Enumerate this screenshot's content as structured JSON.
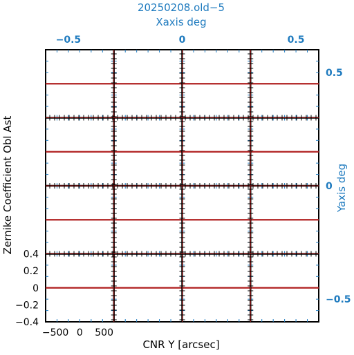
{
  "title": "20250208.old−5",
  "top_axis": {
    "label": "Xaxis deg",
    "ticks": [
      {
        "value": -0.5,
        "text": "−0.5"
      },
      {
        "value": 0,
        "text": "0"
      },
      {
        "value": 0.5,
        "text": "0.5"
      }
    ],
    "range": [
      -0.6,
      0.6
    ]
  },
  "right_axis": {
    "label": "Yaxis deg",
    "ticks": [
      {
        "value": 0.5,
        "text": "0.5"
      },
      {
        "value": 0,
        "text": "0"
      },
      {
        "value": -0.5,
        "text": "−0.5"
      }
    ],
    "range": [
      -0.6,
      0.6
    ]
  },
  "left_axis": {
    "label": "Zernike Coefficient Obl Ast",
    "ticks": [
      {
        "value": 0.4,
        "text": "0.4"
      },
      {
        "value": 0.2,
        "text": "0.2"
      },
      {
        "value": 0,
        "text": "0"
      },
      {
        "value": -0.2,
        "text": "−0.2"
      },
      {
        "value": -0.4,
        "text": "−0.4"
      }
    ],
    "range": [
      -0.4,
      0.4
    ]
  },
  "bottom_axis": {
    "label": "CNR Y [arcsec]",
    "ticks": [
      {
        "value": -500,
        "text": "−500"
      },
      {
        "value": 0,
        "text": "0"
      },
      {
        "value": 500,
        "text": "500"
      }
    ],
    "range": [
      -700,
      700
    ]
  },
  "colors": {
    "accent": "#1f7bbf",
    "data_line": "#b02020",
    "frame": "#000000"
  },
  "chart_data": {
    "type": "line",
    "grid_rows": 4,
    "grid_cols": 4,
    "x_range": [
      -700,
      700
    ],
    "y_range": [
      -0.4,
      0.4
    ],
    "description_series": "each panel shows a flat red line at y = 0 across the CNR Y range",
    "series": [
      {
        "x": [
          -700,
          700
        ],
        "y": [
          0,
          0
        ]
      }
    ]
  }
}
